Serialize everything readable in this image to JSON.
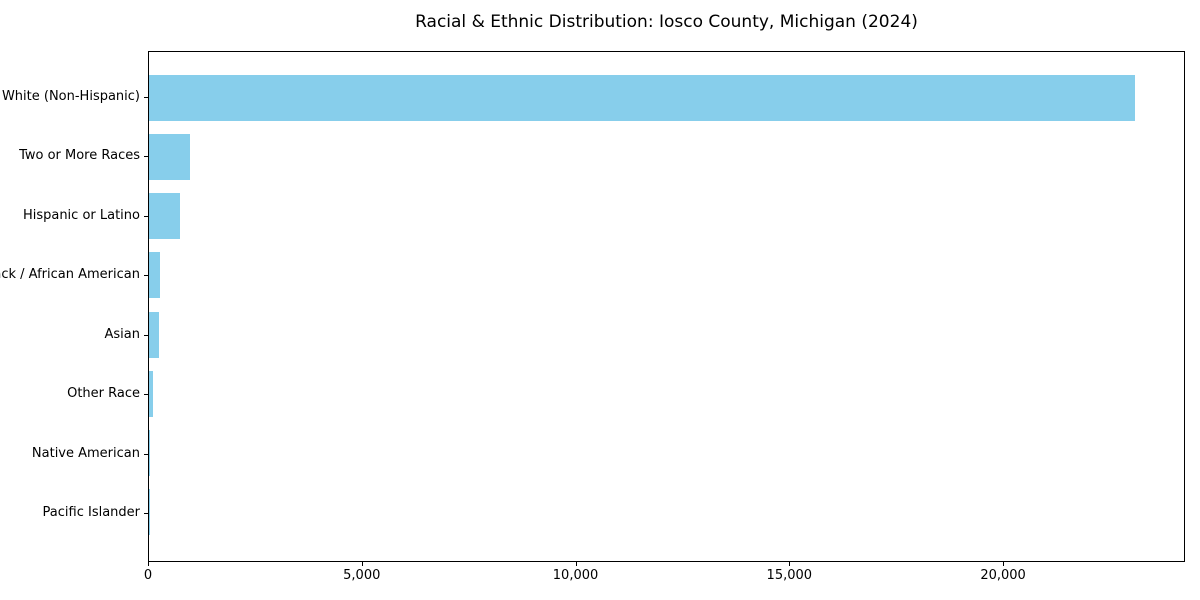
{
  "chart_data": {
    "type": "bar",
    "orientation": "horizontal",
    "title": "Racial & Ethnic Distribution: Iosco County, Michigan (2024)",
    "xlabel": "",
    "ylabel": "",
    "categories": [
      "White (Non-Hispanic)",
      "Two or More Races",
      "Hispanic or Latino",
      "Black / African American",
      "Asian",
      "Other Race",
      "Native American",
      "Pacific Islander"
    ],
    "values": [
      23100,
      950,
      730,
      255,
      235,
      100,
      35,
      5
    ],
    "xlim": [
      0,
      24255
    ],
    "xticks": [
      0,
      5000,
      10000,
      15000,
      20000
    ],
    "xtick_labels": [
      "0",
      "5,000",
      "10,000",
      "15,000",
      "20,000"
    ],
    "bar_color": "#87CEEB",
    "text_color": "#000000",
    "grid": false,
    "legend": null
  }
}
